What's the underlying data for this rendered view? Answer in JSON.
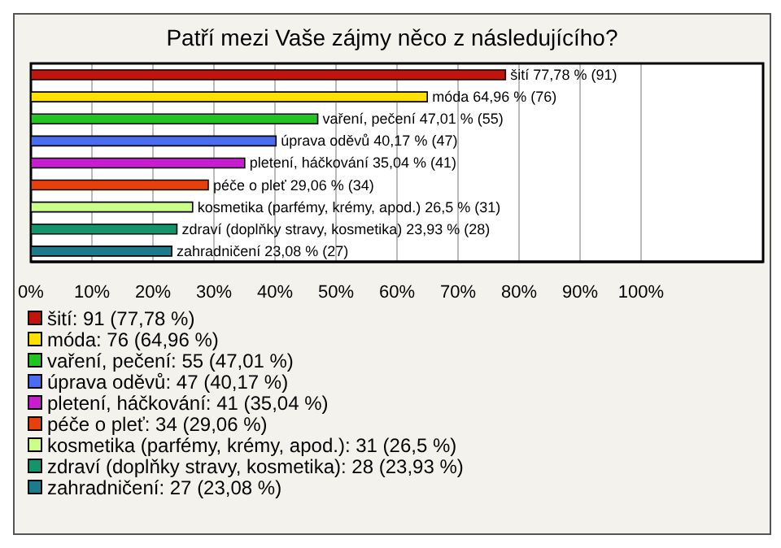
{
  "chart_data": {
    "type": "bar",
    "orientation": "horizontal",
    "title": "Patří mezi Vaše zájmy něco z následujícího?",
    "categories": [
      null,
      null,
      null,
      null,
      null,
      null,
      null,
      null,
      null
    ],
    "values": [
      77.78,
      64.96,
      47.01,
      40.17,
      35.04,
      29.06,
      26.5,
      23.93,
      23.08
    ],
    "colors": [
      "#c0140c",
      "#ffe000",
      "#22c422",
      "#4a6cf0",
      "#c81cd0",
      "#e8400c",
      "#ccff88",
      "#14946a",
      "#1c7a8c"
    ],
    "value_labels": [
      "šití 77,78 % (91)",
      "móda 64,96 % (76)",
      "vaření, pečení 47,01 % (55)",
      "úprava oděvů 40,17 % (47)",
      "pletení, háčkování 35,04 % (41)",
      "péče o pleť 29,06 % (34)",
      "kosmetika (parfémy, krémy, apod.) 26,5 % (31)",
      "zdraví (doplňky stravy, kosmetika) 23,93 % (28)",
      "zahradničení 23,08 % (27)"
    ],
    "annotations": [
      "šití: 91 (77,78 %)",
      "móda: 76 (64,96 %)",
      "vaření, pečení: 55 (47,01 %)",
      "úprava oděvů: 47 (40,17 %)",
      "pletení, háčkování: 41 (35,04 %)",
      "péče o pleť: 34 (29,06 %)",
      "kosmetika (parfémy, krémy, apod.): 31 (26,5 %)",
      "zdraví (doplňky stravy, kosmetika): 28 (23,93 %)",
      "zahradničení: 27 (23,08 %)"
    ],
    "xlim": [
      0,
      120
    ],
    "xticks": [
      {
        "value": 0,
        "label": "0%"
      },
      {
        "value": 10,
        "label": "10%"
      },
      {
        "value": 20,
        "label": "20%"
      },
      {
        "value": 30,
        "label": "30%"
      },
      {
        "value": 40,
        "label": "40%"
      },
      {
        "value": 50,
        "label": "50%"
      },
      {
        "value": 60,
        "label": "60%"
      },
      {
        "value": 70,
        "label": "70%"
      },
      {
        "value": 80,
        "label": "80%"
      },
      {
        "value": 90,
        "label": "90%"
      },
      {
        "value": 100,
        "label": "100%"
      }
    ],
    "grid": "x",
    "tick_labels": "x"
  }
}
